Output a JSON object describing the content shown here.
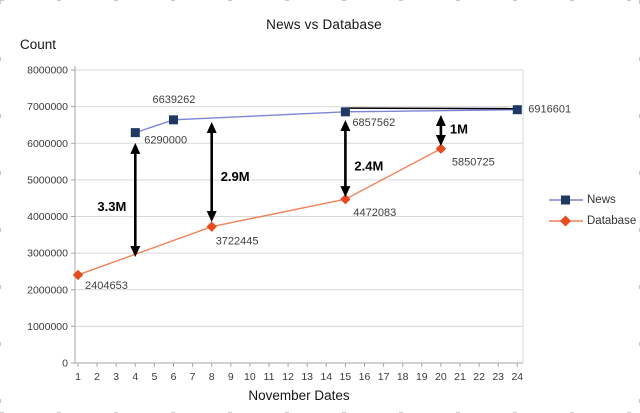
{
  "chart_data": {
    "type": "line",
    "title": "News vs Database",
    "ylabel": "Count",
    "xlabel": "November Dates",
    "x_ticks": [
      1,
      2,
      3,
      4,
      5,
      6,
      7,
      8,
      9,
      10,
      11,
      12,
      13,
      14,
      15,
      16,
      17,
      18,
      19,
      20,
      21,
      22,
      23,
      24
    ],
    "y_ticks": [
      "0",
      "1000000",
      "2000000",
      "3000000",
      "4000000",
      "5000000",
      "6000000",
      "7000000",
      "8000000"
    ],
    "ylim": [
      0,
      8000000
    ],
    "grid": true,
    "legend_position": "right",
    "colors": {
      "grid": "#d9d9d9",
      "axis": "#a6a6a6",
      "tick_label": "#3a3a3a",
      "data_label": "#404040",
      "annotation": "#000000"
    },
    "series": [
      {
        "name": "News",
        "marker": "square",
        "line_color": "#7c85d6",
        "marker_color": "#1f3864",
        "points": [
          {
            "x": 4,
            "y": 6290000,
            "label": "6290000",
            "dx": 9,
            "dy": 11
          },
          {
            "x": 6,
            "y": 6639262,
            "label": "6639262",
            "dx": -21,
            "dy": -17
          },
          {
            "x": 15,
            "y": 6857562,
            "label": "6857562",
            "dx": 7,
            "dy": 14
          },
          {
            "x": 24,
            "y": 6916601,
            "label": "6916601",
            "dx": 11,
            "dy": 3
          }
        ]
      },
      {
        "name": "Database",
        "marker": "diamond",
        "line_color": "#f0835c",
        "marker_color": "#e64a1e",
        "points": [
          {
            "x": 1,
            "y": 2404653,
            "label": "2404653",
            "dx": 7,
            "dy": 14
          },
          {
            "x": 8,
            "y": 3722445,
            "label": "3722445",
            "dx": 4,
            "dy": 18
          },
          {
            "x": 15,
            "y": 4472083,
            "label": "4472083",
            "dx": 8,
            "dy": 17
          },
          {
            "x": 20,
            "y": 5850725,
            "label": "5850725",
            "dx": 11,
            "dy": 17
          }
        ]
      }
    ],
    "overlay_line": {
      "comment": "black drawn line over News between day 15 and 24",
      "from_day": 15.1,
      "to_day": 23.8,
      "value": 6960000,
      "color": "#000000"
    },
    "annotations": [
      {
        "label": "3.3M",
        "x": 4,
        "value_top": 6010000,
        "value_bottom": 2895000,
        "side": "left",
        "label_dy": 11
      },
      {
        "label": "2.9M",
        "x": 8,
        "value_top": 6580000,
        "value_bottom": 3850000,
        "side": "right",
        "label_dy": 9
      },
      {
        "label": "2.4M",
        "x": 15,
        "value_top": 6635000,
        "value_bottom": 4530000,
        "side": "right",
        "label_dy": 12
      },
      {
        "label": "1M",
        "x": 20,
        "value_top": 6770000,
        "value_bottom": 5925000,
        "side": "right",
        "label_dy": 3
      }
    ]
  }
}
